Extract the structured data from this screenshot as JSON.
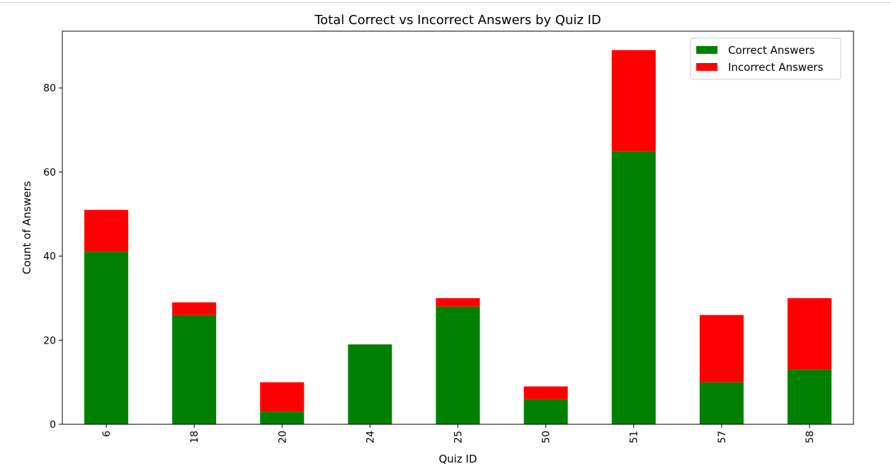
{
  "chart_data": {
    "type": "bar",
    "stacked": true,
    "title": "Total Correct vs Incorrect Answers by Quiz ID",
    "xlabel": "Quiz ID",
    "ylabel": "Count of Answers",
    "categories": [
      "6",
      "18",
      "20",
      "24",
      "25",
      "50",
      "51",
      "57",
      "58"
    ],
    "series": [
      {
        "name": "Correct Answers",
        "color": "#008000",
        "values": [
          41,
          26,
          3,
          19,
          28,
          6,
          65,
          10,
          13
        ]
      },
      {
        "name": "Incorrect Answers",
        "color": "#ff0000",
        "values": [
          10,
          3,
          7,
          0,
          2,
          3,
          24,
          16,
          17
        ]
      }
    ],
    "ylim": [
      0,
      93.5
    ],
    "yticks": [
      0,
      20,
      40,
      60,
      80
    ],
    "grid": false,
    "legend": "top-right",
    "xtick_rotation": 90
  }
}
